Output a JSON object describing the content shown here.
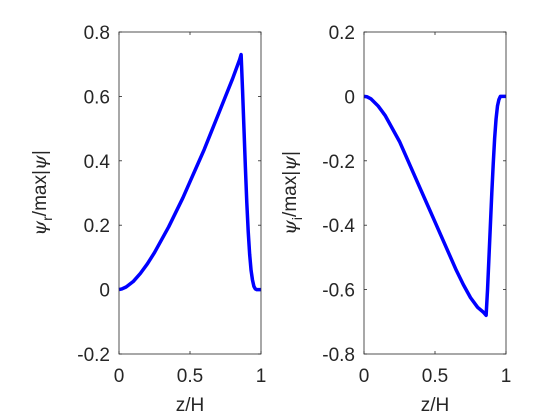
{
  "chart_data": [
    {
      "type": "line",
      "xlabel": "z/H",
      "ylabel": {
        "psi": "ψ",
        "sub": "r",
        "rest": "/max|",
        "psi2": "ψ",
        "close": "|"
      },
      "xlim": [
        0,
        1
      ],
      "ylim": [
        -0.2,
        0.8
      ],
      "xticks": [
        "0",
        "0.5",
        "1"
      ],
      "yticks": [
        "-0.2",
        "0",
        "0.2",
        "0.4",
        "0.6",
        "0.8"
      ],
      "grid": false,
      "color": "#0000ff",
      "series": [
        {
          "x": [
            0,
            0.02,
            0.05,
            0.1,
            0.15,
            0.2,
            0.25,
            0.3,
            0.35,
            0.4,
            0.45,
            0.5,
            0.55,
            0.6,
            0.65,
            0.7,
            0.75,
            0.8,
            0.85,
            0.86,
            0.87,
            0.88,
            0.89,
            0.9,
            0.91,
            0.92,
            0.93,
            0.94,
            0.95,
            0.96,
            0.97,
            0.98,
            1.0
          ],
          "values": [
            0,
            0.002,
            0.008,
            0.025,
            0.05,
            0.08,
            0.115,
            0.155,
            0.195,
            0.24,
            0.285,
            0.335,
            0.385,
            0.435,
            0.49,
            0.545,
            0.6,
            0.655,
            0.715,
            0.73,
            0.62,
            0.5,
            0.38,
            0.27,
            0.18,
            0.11,
            0.06,
            0.03,
            0.01,
            0.002,
            0,
            0,
            0
          ]
        }
      ]
    },
    {
      "type": "line",
      "xlabel": "z/H",
      "ylabel": {
        "psi": "ψ",
        "sub": "i",
        "rest": "/max|",
        "psi2": "ψ",
        "close": "|"
      },
      "xlim": [
        0,
        1
      ],
      "ylim": [
        -0.8,
        0.2
      ],
      "xticks": [
        "0",
        "0.5",
        "1"
      ],
      "yticks": [
        "-0.8",
        "-0.6",
        "-0.4",
        "-0.2",
        "0",
        "0.2"
      ],
      "grid": false,
      "color": "#0000ff",
      "series": [
        {
          "x": [
            0,
            0.02,
            0.05,
            0.1,
            0.15,
            0.2,
            0.25,
            0.3,
            0.35,
            0.4,
            0.45,
            0.5,
            0.55,
            0.6,
            0.65,
            0.7,
            0.75,
            0.8,
            0.84,
            0.86,
            0.87,
            0.88,
            0.89,
            0.9,
            0.91,
            0.92,
            0.93,
            0.94,
            0.95,
            0.96,
            0.97,
            0.98,
            1.0
          ],
          "values": [
            0,
            -0.001,
            -0.008,
            -0.03,
            -0.06,
            -0.1,
            -0.14,
            -0.19,
            -0.24,
            -0.29,
            -0.34,
            -0.39,
            -0.44,
            -0.49,
            -0.54,
            -0.585,
            -0.625,
            -0.655,
            -0.67,
            -0.68,
            -0.6,
            -0.5,
            -0.4,
            -0.3,
            -0.21,
            -0.13,
            -0.07,
            -0.03,
            -0.01,
            0,
            0,
            0,
            0
          ]
        }
      ]
    }
  ]
}
